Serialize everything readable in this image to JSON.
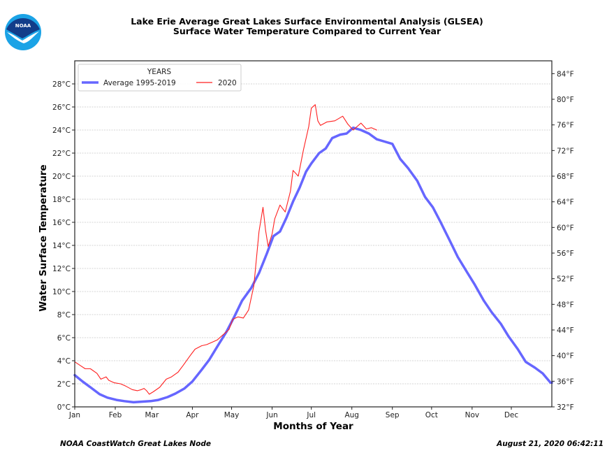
{
  "header": {
    "logo_text": "NOAA",
    "title_line1": "Lake Erie Average Great Lakes Surface Environmental Analysis (GLSEA)",
    "title_line2": "Surface Water Temperature Compared to Current Year"
  },
  "footer": {
    "source": "NOAA CoastWatch Great Lakes Node",
    "timestamp": "August 21, 2020 06:42:11"
  },
  "colors": {
    "average": "#6666ff",
    "current": "#ff2020",
    "grid": "#c8c8c8",
    "axis": "#222222"
  },
  "chart_data": {
    "type": "line",
    "title": "Lake Erie Average Great Lakes Surface Environmental Analysis (GLSEA) Surface Water Temperature Compared to Current Year",
    "xlabel": "Months of Year",
    "ylabel": "Water Surface Temperature",
    "xlim": [
      0,
      365
    ],
    "ylim": [
      0,
      30
    ],
    "ylim_right_F": [
      32,
      86
    ],
    "grid": true,
    "legend": {
      "title": "YEARS",
      "placement": "top-left",
      "entries": [
        "Average 1995-2019",
        "2020"
      ]
    },
    "x_ticks": [
      {
        "day": 0,
        "label": "Jan"
      },
      {
        "day": 31,
        "label": "Feb"
      },
      {
        "day": 59,
        "label": "Mar"
      },
      {
        "day": 90,
        "label": "Apr"
      },
      {
        "day": 120,
        "label": "May"
      },
      {
        "day": 151,
        "label": "Jun"
      },
      {
        "day": 181,
        "label": "Jul"
      },
      {
        "day": 212,
        "label": "Aug"
      },
      {
        "day": 243,
        "label": "Sep"
      },
      {
        "day": 273,
        "label": "Oct"
      },
      {
        "day": 304,
        "label": "Nov"
      },
      {
        "day": 334,
        "label": "Dec"
      }
    ],
    "y_ticks_left": [
      {
        "value": 0,
        "label": "0°C"
      },
      {
        "value": 2,
        "label": "2°C"
      },
      {
        "value": 4,
        "label": "4°C"
      },
      {
        "value": 6,
        "label": "6°C"
      },
      {
        "value": 8,
        "label": "8°C"
      },
      {
        "value": 10,
        "label": "10°C"
      },
      {
        "value": 12,
        "label": "12°C"
      },
      {
        "value": 14,
        "label": "14°C"
      },
      {
        "value": 16,
        "label": "16°C"
      },
      {
        "value": 18,
        "label": "18°C"
      },
      {
        "value": 20,
        "label": "20°C"
      },
      {
        "value": 22,
        "label": "22°C"
      },
      {
        "value": 24,
        "label": "24°C"
      },
      {
        "value": 26,
        "label": "26°C"
      },
      {
        "value": 28,
        "label": "28°C"
      }
    ],
    "y_ticks_right": [
      {
        "value": 32,
        "label": "32°F"
      },
      {
        "value": 36,
        "label": "36°F"
      },
      {
        "value": 40,
        "label": "40°F"
      },
      {
        "value": 44,
        "label": "44°F"
      },
      {
        "value": 48,
        "label": "48°F"
      },
      {
        "value": 52,
        "label": "52°F"
      },
      {
        "value": 56,
        "label": "56°F"
      },
      {
        "value": 60,
        "label": "60°F"
      },
      {
        "value": 64,
        "label": "64°F"
      },
      {
        "value": 68,
        "label": "68°F"
      },
      {
        "value": 72,
        "label": "72°F"
      },
      {
        "value": 76,
        "label": "76°F"
      },
      {
        "value": 80,
        "label": "80°F"
      },
      {
        "value": 84,
        "label": "84°F"
      }
    ],
    "series": [
      {
        "name": "Average 1995-2019",
        "x": [
          0,
          6,
          12,
          19,
          25,
          32,
          38,
          45,
          51,
          58,
          64,
          71,
          77,
          84,
          90,
          97,
          103,
          110,
          116,
          122,
          128,
          135,
          141,
          147,
          152,
          157,
          162,
          167,
          172,
          177,
          181,
          187,
          192,
          197,
          203,
          208,
          213,
          219,
          225,
          231,
          237,
          243,
          249,
          255,
          262,
          268,
          274,
          280,
          287,
          293,
          300,
          306,
          313,
          319,
          326,
          332,
          339,
          345,
          352,
          358,
          364,
          365
        ],
        "values": [
          2.75,
          2.2,
          1.7,
          1.1,
          0.8,
          0.6,
          0.5,
          0.4,
          0.45,
          0.5,
          0.6,
          0.85,
          1.15,
          1.6,
          2.2,
          3.2,
          4.1,
          5.4,
          6.5,
          7.8,
          9.2,
          10.3,
          11.6,
          13.3,
          14.8,
          15.2,
          16.4,
          17.8,
          19.0,
          20.4,
          21.1,
          22.0,
          22.4,
          23.3,
          23.6,
          23.7,
          24.2,
          24.0,
          23.7,
          23.2,
          23.0,
          22.8,
          21.5,
          20.7,
          19.6,
          18.2,
          17.3,
          16.0,
          14.4,
          13.0,
          11.7,
          10.6,
          9.2,
          8.2,
          7.2,
          6.1,
          5.0,
          3.9,
          3.4,
          2.9,
          2.1,
          2.1
        ]
      },
      {
        "name": "2020",
        "x": [
          0,
          4,
          8,
          12,
          17,
          20,
          24,
          26,
          30,
          35,
          39,
          44,
          48,
          51,
          53,
          55,
          57,
          60,
          65,
          70,
          74,
          79,
          83,
          88,
          92,
          97,
          101,
          105,
          109,
          113,
          118,
          121,
          125,
          129,
          133,
          137,
          141,
          144,
          146,
          148,
          151,
          153,
          157,
          161,
          165,
          167,
          171,
          175,
          179,
          181,
          184,
          186,
          188,
          193,
          199,
          205,
          209,
          213,
          216,
          219,
          223,
          227,
          231
        ],
        "values": [
          3.9,
          3.6,
          3.3,
          3.3,
          2.9,
          2.4,
          2.6,
          2.3,
          2.1,
          2.0,
          1.8,
          1.5,
          1.4,
          1.5,
          1.6,
          1.4,
          1.1,
          1.3,
          1.7,
          2.4,
          2.6,
          3.0,
          3.6,
          4.4,
          5.0,
          5.3,
          5.4,
          5.6,
          5.8,
          6.2,
          6.7,
          7.6,
          7.8,
          7.7,
          8.4,
          10.5,
          15.2,
          17.3,
          15.3,
          13.9,
          15.0,
          16.3,
          17.5,
          16.9,
          18.7,
          20.5,
          20.0,
          22.3,
          24.3,
          25.9,
          26.2,
          24.8,
          24.4,
          24.7,
          24.8,
          25.2,
          24.5,
          24.0,
          24.3,
          24.6,
          24.1,
          24.2,
          24.0
        ]
      }
    ]
  }
}
